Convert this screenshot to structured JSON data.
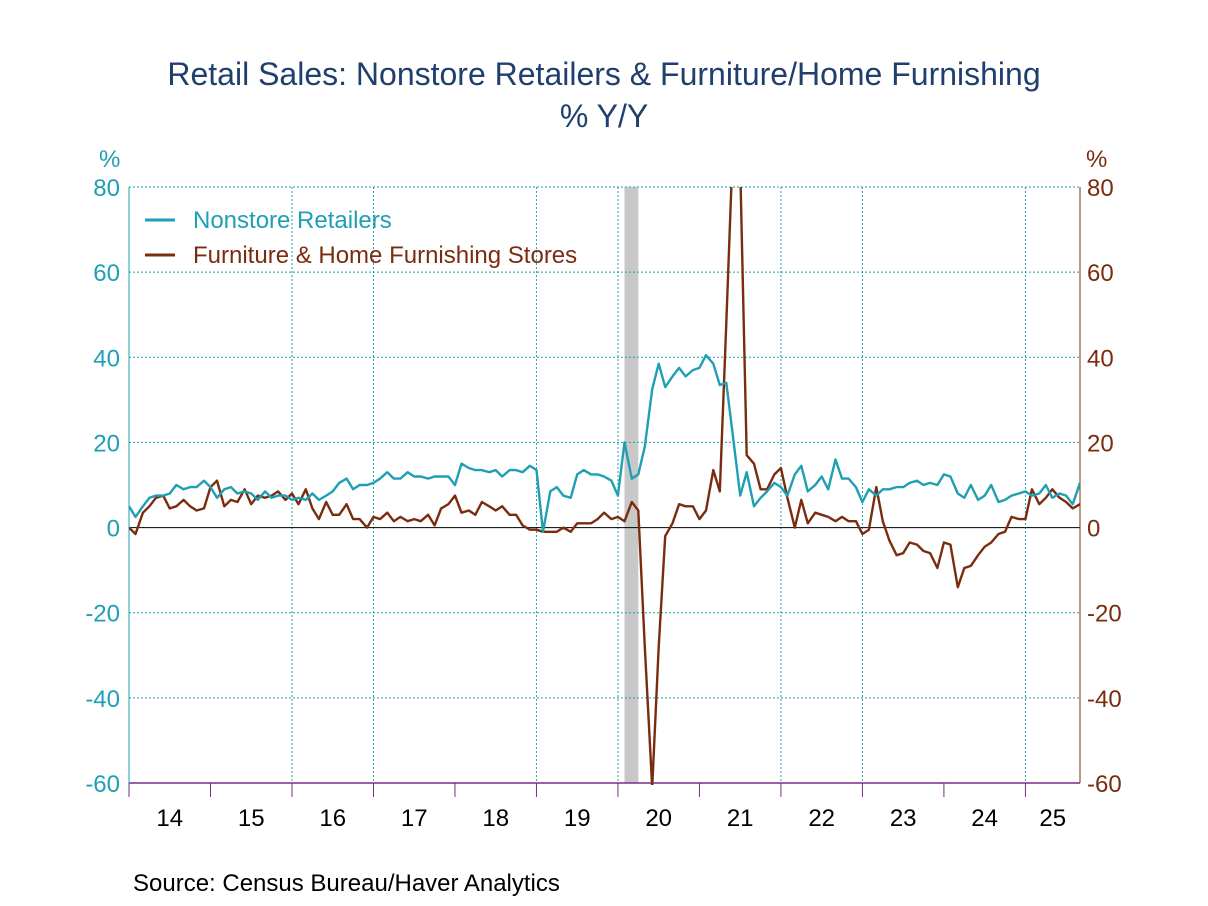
{
  "chart_data": {
    "type": "line",
    "title": "Retail Sales: Nonstore Retailers & Furniture/Home Furnishing",
    "subtitle": "% Y/Y",
    "ylabel_left": "%",
    "ylabel_right": "%",
    "source": "Source:  Census Bureau/Haver Analytics",
    "ylim": [
      -60,
      80
    ],
    "yticks": [
      80,
      60,
      40,
      20,
      0,
      -20,
      -40,
      -60
    ],
    "ytick_labels": [
      "80",
      "60",
      "40",
      "20",
      "0",
      "-20",
      "-40",
      "-60"
    ],
    "xlim": [
      2014.0,
      2025.67
    ],
    "x_labels": [
      "14",
      "15",
      "16",
      "17",
      "18",
      "19",
      "20",
      "21",
      "22",
      "23",
      "24",
      "25"
    ],
    "grid": true,
    "legend_position": "top-left",
    "recession_shading": [
      2020.08,
      2020.25
    ],
    "series": [
      {
        "name": "Nonstore Retailers",
        "color": "#1f9fb3",
        "points": [
          [
            2014.0,
            5.0
          ],
          [
            2014.08,
            2.5
          ],
          [
            2014.17,
            5.0
          ],
          [
            2014.25,
            7.0
          ],
          [
            2014.33,
            7.5
          ],
          [
            2014.42,
            7.5
          ],
          [
            2014.5,
            8.0
          ],
          [
            2014.58,
            10.0
          ],
          [
            2014.67,
            9.0
          ],
          [
            2014.75,
            9.5
          ],
          [
            2014.83,
            9.5
          ],
          [
            2014.92,
            11.0
          ],
          [
            2015.0,
            9.5
          ],
          [
            2015.08,
            7.0
          ],
          [
            2015.17,
            9.0
          ],
          [
            2015.25,
            9.5
          ],
          [
            2015.33,
            8.0
          ],
          [
            2015.42,
            8.5
          ],
          [
            2015.5,
            8.0
          ],
          [
            2015.58,
            6.5
          ],
          [
            2015.67,
            8.5
          ],
          [
            2015.75,
            7.0
          ],
          [
            2015.83,
            7.5
          ],
          [
            2015.92,
            7.5
          ],
          [
            2016.0,
            6.5
          ],
          [
            2016.08,
            7.0
          ],
          [
            2016.17,
            6.5
          ],
          [
            2016.25,
            8.0
          ],
          [
            2016.33,
            6.5
          ],
          [
            2016.42,
            7.5
          ],
          [
            2016.5,
            8.5
          ],
          [
            2016.58,
            10.5
          ],
          [
            2016.67,
            11.5
          ],
          [
            2016.75,
            9.0
          ],
          [
            2016.83,
            10.0
          ],
          [
            2016.92,
            10.0
          ],
          [
            2017.0,
            10.5
          ],
          [
            2017.08,
            11.5
          ],
          [
            2017.17,
            13.0
          ],
          [
            2017.25,
            11.5
          ],
          [
            2017.33,
            11.5
          ],
          [
            2017.42,
            13.0
          ],
          [
            2017.5,
            12.0
          ],
          [
            2017.58,
            12.0
          ],
          [
            2017.67,
            11.5
          ],
          [
            2017.75,
            12.0
          ],
          [
            2017.83,
            12.0
          ],
          [
            2017.92,
            12.0
          ],
          [
            2018.0,
            10.0
          ],
          [
            2018.08,
            15.0
          ],
          [
            2018.17,
            14.0
          ],
          [
            2018.25,
            13.5
          ],
          [
            2018.33,
            13.5
          ],
          [
            2018.42,
            13.0
          ],
          [
            2018.5,
            13.5
          ],
          [
            2018.58,
            12.0
          ],
          [
            2018.67,
            13.5
          ],
          [
            2018.75,
            13.5
          ],
          [
            2018.83,
            13.0
          ],
          [
            2018.92,
            14.5
          ],
          [
            2019.0,
            13.5
          ],
          [
            2019.08,
            -1.0
          ],
          [
            2019.17,
            8.5
          ],
          [
            2019.25,
            9.5
          ],
          [
            2019.33,
            7.5
          ],
          [
            2019.42,
            7.0
          ],
          [
            2019.5,
            12.5
          ],
          [
            2019.58,
            13.5
          ],
          [
            2019.67,
            12.5
          ],
          [
            2019.75,
            12.5
          ],
          [
            2019.83,
            12.0
          ],
          [
            2019.92,
            11.0
          ],
          [
            2020.0,
            7.5
          ],
          [
            2020.08,
            20.0
          ],
          [
            2020.17,
            11.5
          ],
          [
            2020.25,
            12.5
          ],
          [
            2020.33,
            19.0
          ],
          [
            2020.42,
            32.5
          ],
          [
            2020.5,
            38.5
          ],
          [
            2020.58,
            33.0
          ],
          [
            2020.67,
            35.5
          ],
          [
            2020.75,
            37.5
          ],
          [
            2020.83,
            35.5
          ],
          [
            2020.92,
            37.0
          ],
          [
            2021.0,
            37.5
          ],
          [
            2021.08,
            40.5
          ],
          [
            2021.17,
            38.5
          ],
          [
            2021.25,
            33.5
          ],
          [
            2021.33,
            34.0
          ],
          [
            2021.42,
            20.0
          ],
          [
            2021.5,
            7.5
          ],
          [
            2021.58,
            13.0
          ],
          [
            2021.67,
            5.0
          ],
          [
            2021.75,
            7.0
          ],
          [
            2021.83,
            8.5
          ],
          [
            2021.92,
            10.5
          ],
          [
            2022.0,
            9.5
          ],
          [
            2022.08,
            7.5
          ],
          [
            2022.17,
            12.5
          ],
          [
            2022.25,
            14.5
          ],
          [
            2022.33,
            8.5
          ],
          [
            2022.42,
            10.0
          ],
          [
            2022.5,
            12.0
          ],
          [
            2022.58,
            9.0
          ],
          [
            2022.67,
            16.0
          ],
          [
            2022.75,
            11.5
          ],
          [
            2022.83,
            11.5
          ],
          [
            2022.92,
            9.5
          ],
          [
            2023.0,
            6.0
          ],
          [
            2023.08,
            9.0
          ],
          [
            2023.17,
            7.5
          ],
          [
            2023.25,
            9.0
          ],
          [
            2023.33,
            9.0
          ],
          [
            2023.42,
            9.5
          ],
          [
            2023.5,
            9.5
          ],
          [
            2023.58,
            10.5
          ],
          [
            2023.67,
            11.0
          ],
          [
            2023.75,
            10.0
          ],
          [
            2023.83,
            10.5
          ],
          [
            2023.92,
            10.0
          ],
          [
            2024.0,
            12.5
          ],
          [
            2024.08,
            12.0
          ],
          [
            2024.17,
            8.0
          ],
          [
            2024.25,
            7.0
          ],
          [
            2024.33,
            10.0
          ],
          [
            2024.42,
            6.5
          ],
          [
            2024.5,
            7.5
          ],
          [
            2024.58,
            10.0
          ],
          [
            2024.67,
            6.0
          ],
          [
            2024.75,
            6.5
          ],
          [
            2024.83,
            7.5
          ],
          [
            2024.92,
            8.0
          ],
          [
            2025.0,
            8.5
          ],
          [
            2025.08,
            7.5
          ],
          [
            2025.17,
            8.0
          ],
          [
            2025.25,
            10.0
          ],
          [
            2025.33,
            7.0
          ],
          [
            2025.42,
            8.0
          ],
          [
            2025.5,
            7.5
          ],
          [
            2025.58,
            5.5
          ],
          [
            2025.67,
            10.5
          ]
        ]
      },
      {
        "name": "Furniture & Home Furnishing Stores",
        "color": "#7a2c0f",
        "points": [
          [
            2014.0,
            0.0
          ],
          [
            2014.08,
            -1.5
          ],
          [
            2014.17,
            3.5
          ],
          [
            2014.25,
            5.0
          ],
          [
            2014.33,
            7.0
          ],
          [
            2014.42,
            7.5
          ],
          [
            2014.5,
            4.5
          ],
          [
            2014.58,
            5.0
          ],
          [
            2014.67,
            6.5
          ],
          [
            2014.75,
            5.0
          ],
          [
            2014.83,
            4.0
          ],
          [
            2014.92,
            4.5
          ],
          [
            2015.0,
            9.5
          ],
          [
            2015.08,
            11.0
          ],
          [
            2015.17,
            5.0
          ],
          [
            2015.25,
            6.5
          ],
          [
            2015.33,
            6.0
          ],
          [
            2015.42,
            9.0
          ],
          [
            2015.5,
            5.5
          ],
          [
            2015.58,
            7.5
          ],
          [
            2015.67,
            7.0
          ],
          [
            2015.75,
            7.5
          ],
          [
            2015.83,
            8.5
          ],
          [
            2015.92,
            6.5
          ],
          [
            2016.0,
            8.0
          ],
          [
            2016.08,
            5.5
          ],
          [
            2016.17,
            9.0
          ],
          [
            2016.25,
            4.5
          ],
          [
            2016.33,
            2.0
          ],
          [
            2016.42,
            6.0
          ],
          [
            2016.5,
            3.0
          ],
          [
            2016.58,
            3.0
          ],
          [
            2016.67,
            5.5
          ],
          [
            2016.75,
            2.0
          ],
          [
            2016.83,
            2.0
          ],
          [
            2016.92,
            0.0
          ],
          [
            2017.0,
            2.5
          ],
          [
            2017.08,
            2.0
          ],
          [
            2017.17,
            3.5
          ],
          [
            2017.25,
            1.5
          ],
          [
            2017.33,
            2.5
          ],
          [
            2017.42,
            1.5
          ],
          [
            2017.5,
            2.0
          ],
          [
            2017.58,
            1.5
          ],
          [
            2017.67,
            3.0
          ],
          [
            2017.75,
            0.5
          ],
          [
            2017.83,
            4.5
          ],
          [
            2017.92,
            5.5
          ],
          [
            2018.0,
            7.5
          ],
          [
            2018.08,
            3.5
          ],
          [
            2018.17,
            4.0
          ],
          [
            2018.25,
            3.0
          ],
          [
            2018.33,
            6.0
          ],
          [
            2018.42,
            5.0
          ],
          [
            2018.5,
            4.0
          ],
          [
            2018.58,
            5.0
          ],
          [
            2018.67,
            3.0
          ],
          [
            2018.75,
            3.0
          ],
          [
            2018.83,
            0.5
          ],
          [
            2018.92,
            -0.5
          ],
          [
            2019.0,
            -0.5
          ],
          [
            2019.08,
            -1.0
          ],
          [
            2019.17,
            -1.0
          ],
          [
            2019.25,
            -1.0
          ],
          [
            2019.33,
            0.0
          ],
          [
            2019.42,
            -1.0
          ],
          [
            2019.5,
            1.0
          ],
          [
            2019.58,
            1.0
          ],
          [
            2019.67,
            1.0
          ],
          [
            2019.75,
            2.0
          ],
          [
            2019.83,
            3.5
          ],
          [
            2019.92,
            2.0
          ],
          [
            2020.0,
            2.5
          ],
          [
            2020.08,
            1.5
          ],
          [
            2020.17,
            6.0
          ],
          [
            2020.25,
            4.0
          ],
          [
            2020.33,
            -28.0
          ],
          [
            2020.42,
            -61.0
          ],
          [
            2020.5,
            -28.0
          ],
          [
            2020.58,
            -2.0
          ],
          [
            2020.67,
            1.0
          ],
          [
            2020.75,
            5.5
          ],
          [
            2020.83,
            5.0
          ],
          [
            2020.92,
            5.0
          ],
          [
            2021.0,
            2.0
          ],
          [
            2021.08,
            4.0
          ],
          [
            2021.17,
            13.5
          ],
          [
            2021.25,
            8.5
          ],
          [
            2021.33,
            48.0
          ],
          [
            2021.42,
            95.0
          ],
          [
            2021.5,
            85.0
          ],
          [
            2021.58,
            17.0
          ],
          [
            2021.67,
            15.0
          ],
          [
            2021.75,
            9.0
          ],
          [
            2021.83,
            9.0
          ],
          [
            2021.92,
            12.5
          ],
          [
            2022.0,
            14.0
          ],
          [
            2022.08,
            7.0
          ],
          [
            2022.17,
            0.0
          ],
          [
            2022.25,
            6.5
          ],
          [
            2022.33,
            1.0
          ],
          [
            2022.42,
            3.5
          ],
          [
            2022.5,
            3.0
          ],
          [
            2022.58,
            2.5
          ],
          [
            2022.67,
            1.5
          ],
          [
            2022.75,
            2.5
          ],
          [
            2022.83,
            1.5
          ],
          [
            2022.92,
            1.5
          ],
          [
            2023.0,
            -1.5
          ],
          [
            2023.08,
            -0.5
          ],
          [
            2023.17,
            9.5
          ],
          [
            2023.25,
            1.5
          ],
          [
            2023.33,
            -3.0
          ],
          [
            2023.42,
            -6.5
          ],
          [
            2023.5,
            -6.0
          ],
          [
            2023.58,
            -3.5
          ],
          [
            2023.67,
            -4.0
          ],
          [
            2023.75,
            -5.5
          ],
          [
            2023.83,
            -6.0
          ],
          [
            2023.92,
            -9.5
          ],
          [
            2024.0,
            -3.5
          ],
          [
            2024.08,
            -4.0
          ],
          [
            2024.17,
            -14.0
          ],
          [
            2024.25,
            -9.5
          ],
          [
            2024.33,
            -9.0
          ],
          [
            2024.42,
            -6.5
          ],
          [
            2024.5,
            -4.5
          ],
          [
            2024.58,
            -3.5
          ],
          [
            2024.67,
            -1.5
          ],
          [
            2024.75,
            -1.0
          ],
          [
            2024.83,
            2.5
          ],
          [
            2024.92,
            2.0
          ],
          [
            2025.0,
            2.0
          ],
          [
            2025.08,
            9.0
          ],
          [
            2025.17,
            5.5
          ],
          [
            2025.25,
            7.0
          ],
          [
            2025.33,
            9.0
          ],
          [
            2025.42,
            7.0
          ],
          [
            2025.5,
            6.0
          ],
          [
            2025.58,
            4.5
          ],
          [
            2025.67,
            5.5
          ],
          [
            2025.75,
            5.5
          ]
        ]
      }
    ]
  }
}
